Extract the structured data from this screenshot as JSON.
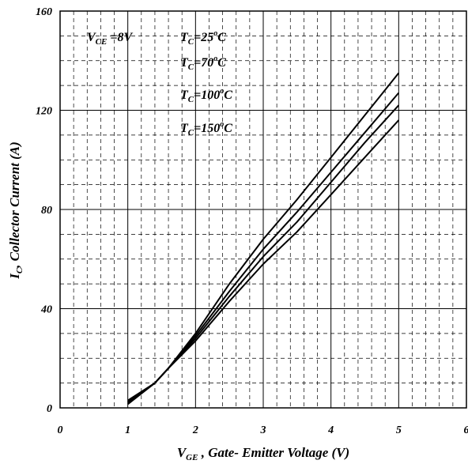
{
  "chart_data": {
    "type": "line",
    "xlabel": {
      "main": "V",
      "sub": "GE",
      "rest": " , Gate- Emitter Voltage (V)"
    },
    "ylabel": {
      "main": "I",
      "sub": "C",
      "rest": ", Collector Current (A)"
    },
    "xlim": [
      0,
      6
    ],
    "ylim": [
      0,
      160
    ],
    "x_ticks": [
      "0",
      "1",
      "2",
      "3",
      "4",
      "5",
      "6"
    ],
    "y_ticks": [
      "0",
      "40",
      "80",
      "120",
      "160"
    ],
    "grid": "solid major, dashed minor",
    "annotations": [
      {
        "main": "V",
        "sub": "CE",
        "rest": " =8V"
      },
      {
        "main": "T",
        "sub": "C",
        "rest1": "=25",
        "sup": "o",
        "rest2": "C"
      },
      {
        "main": "T",
        "sub": "C",
        "rest1": "=70",
        "sup": "o",
        "rest2": "C"
      },
      {
        "main": "T",
        "sub": "C",
        "rest1": "=100",
        "sup": "o",
        "rest2": "C"
      },
      {
        "main": "T",
        "sub": "C",
        "rest1": "=150",
        "sup": "o",
        "rest2": "C"
      }
    ],
    "series": [
      {
        "x": [
          1.0,
          1.4,
          1.6,
          2.0,
          2.5,
          3.0,
          3.5,
          4.0,
          4.5,
          5.0
        ],
        "y": [
          3,
          10,
          16,
          30,
          50,
          68,
          84,
          101,
          118,
          135
        ]
      },
      {
        "x": [
          1.0,
          1.4,
          1.6,
          2.0,
          2.5,
          3.0,
          3.5,
          4.0,
          4.5,
          5.0
        ],
        "y": [
          2.5,
          10,
          16,
          29,
          47,
          64,
          79,
          95,
          111,
          127
        ]
      },
      {
        "x": [
          1.0,
          1.4,
          1.6,
          2.0,
          2.5,
          3.0,
          3.5,
          4.0,
          4.5,
          5.0
        ],
        "y": [
          2,
          10,
          16,
          28,
          45,
          61,
          75,
          91,
          107,
          122
        ]
      },
      {
        "x": [
          1.0,
          1.4,
          1.6,
          2.0,
          2.5,
          3.0,
          3.5,
          4.0,
          4.5,
          5.0
        ],
        "y": [
          1.5,
          10,
          16,
          27,
          43,
          58,
          71,
          86,
          101,
          116
        ]
      }
    ]
  }
}
